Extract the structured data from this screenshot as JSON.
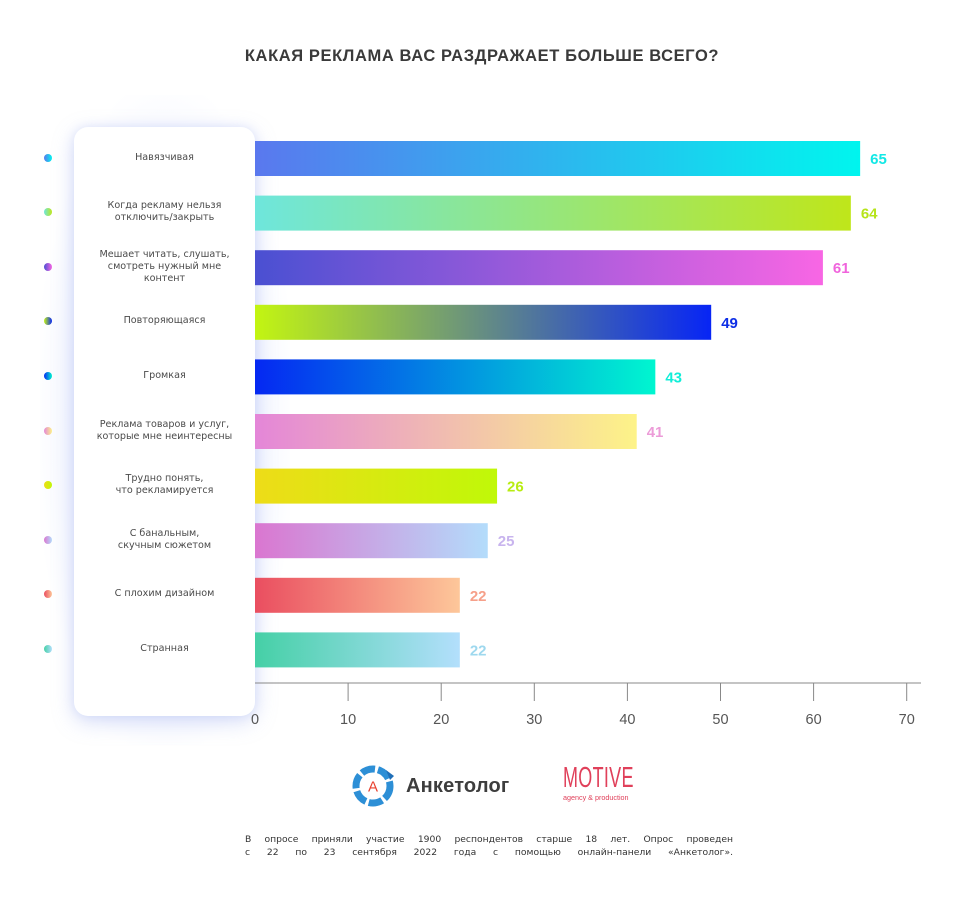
{
  "chart_data": {
    "type": "bar",
    "orientation": "horizontal",
    "title": "КАКАЯ РЕКЛАМА ВАС РАЗДРАЖАЕТ БОЛЬШЕ ВСЕГО?",
    "xlabel": "",
    "ylabel": "",
    "xlim": [
      0,
      70
    ],
    "xticks": [
      0,
      10,
      20,
      30,
      40,
      50,
      60,
      70
    ],
    "xtick_labels": [
      "0",
      "10",
      "20",
      "30",
      "40",
      "50",
      "60",
      "70"
    ],
    "grid": false,
    "categories": [
      "Навязчивая",
      "Когда рекламу нельзя отключить/закрыть",
      "Мешает читать, слушать, смотреть нужный мне контент",
      "Повторяющаяся",
      "Громкая",
      "Реклама товаров и услуг, которые мне неинтересны",
      "Трудно понять, что рекламируется",
      "С банальным, скучным сюжетом",
      "С плохим дизайном",
      "Странная"
    ],
    "category_lines": [
      [
        "Навязчивая"
      ],
      [
        "Когда рекламу нельзя",
        "отключить/закрыть"
      ],
      [
        "Мешает читать, слушать,",
        "смотреть нужный мне",
        "контент"
      ],
      [
        "Повторяющаяся"
      ],
      [
        "Громкая"
      ],
      [
        "Реклама товаров и услуг,",
        "которые мне неинтересны"
      ],
      [
        "Трудно понять,",
        "что рекламируется"
      ],
      [
        "С банальным,",
        "скучным сюжетом"
      ],
      [
        "С плохим дизайном"
      ],
      [
        "Странная"
      ]
    ],
    "values": [
      65,
      64,
      61,
      49,
      43,
      41,
      26,
      25,
      22,
      22
    ],
    "value_labels": [
      "65",
      "64",
      "61",
      "49",
      "43",
      "41",
      "26",
      "25",
      "22",
      "22"
    ],
    "gradients": [
      [
        "#5a78ee",
        "#00f5ee"
      ],
      [
        "#6ee6dc",
        "#bfe61a"
      ],
      [
        "#4a50d2",
        "#f866e4"
      ],
      [
        "#c3f511",
        "#0725f5"
      ],
      [
        "#0528f2",
        "#00f6d0"
      ],
      [
        "#e486d8",
        "#fdf388"
      ],
      [
        "#eedc18",
        "#c0f808"
      ],
      [
        "#da76d0",
        "#b3dcfb"
      ],
      [
        "#ea4e60",
        "#fdc79a"
      ],
      [
        "#45d0a6",
        "#b3dffc"
      ]
    ],
    "label_colors": [
      "#12e8e6",
      "#b6e41a",
      "#f064dc",
      "#0d2ee6",
      "#10eed8",
      "#ec9cd8",
      "#b8ec12",
      "#c8b4ee",
      "#f6a08a",
      "#9ed8ee"
    ]
  },
  "logos": {
    "anketolog": {
      "mark": "А",
      "text": "Анкетолог",
      "ring_color": "#2d8fd6",
      "mark_color": "#e8412e"
    },
    "motive": {
      "text": "MOTIVE",
      "subtitle": "agency & production",
      "color": "#e0405a"
    }
  },
  "footnote": {
    "line1": "В опросе приняли участие 1900 респондентов старше 18 лет. Опрос проведен",
    "line2": "с 22 по 23 сентября 2022 года с помощью онлайн-панели «Анкетолог»."
  },
  "colors": {
    "axis": "#888888",
    "title": "#3a3a3a",
    "text": "#4a4a4a"
  }
}
